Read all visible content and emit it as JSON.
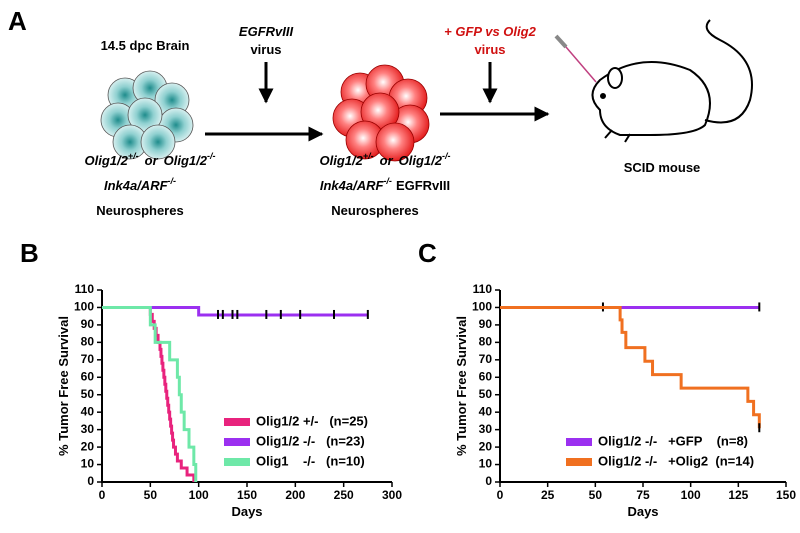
{
  "panel_a": {
    "label": "A",
    "source": "14.5 dpc Brain",
    "virus1": {
      "agent": "EGFRvIII",
      "word": "virus"
    },
    "virus2": {
      "agent": "+ GFP vs Olig2",
      "word": "virus"
    },
    "target": "SCID mouse",
    "left": {
      "g1": "Olig1/2",
      "s1": "+/-",
      "or": "or",
      "g2": "Olig1/2",
      "s2": "-/-",
      "g3": "Ink4a/ARF",
      "s3": "-/-",
      "cells": "Neurospheres"
    },
    "middle": {
      "g1": "Olig1/2",
      "s1": "+/-",
      "or": "or",
      "g2": "Olig1/2",
      "s2": "-/-",
      "g3": "Ink4a/ARF",
      "s3": "-/-",
      "extra": "EGFRvIII",
      "cells": "Neurospheres"
    }
  },
  "chart_data": [
    {
      "type": "survival",
      "panel": "B",
      "xlabel": "Days",
      "ylabel": "% Tumor Free Survival",
      "xlim": [
        0,
        300
      ],
      "xticks": [
        0,
        50,
        100,
        150,
        200,
        250,
        300
      ],
      "ylim": [
        0,
        110
      ],
      "yticks": [
        0,
        10,
        20,
        30,
        40,
        50,
        60,
        70,
        80,
        90,
        100,
        110
      ],
      "legend": "lower right",
      "series": [
        {
          "name": "Olig1/2 +/-   (n=25)",
          "color": "#e8237d",
          "x": [
            0,
            50,
            52,
            54,
            56,
            58,
            60,
            61,
            62,
            63,
            64,
            65,
            66,
            67,
            68,
            69,
            70,
            71,
            72,
            73,
            74,
            76,
            78,
            82,
            88,
            95
          ],
          "values": [
            100,
            96,
            92,
            88,
            84,
            80,
            76,
            72,
            68,
            64,
            60,
            56,
            52,
            48,
            44,
            40,
            36,
            32,
            28,
            24,
            20,
            16,
            12,
            8,
            4,
            0
          ],
          "censored": []
        },
        {
          "name": "Olig1/2 -/-   (n=23)",
          "color": "#9b30f0",
          "x": [
            0,
            100,
            275
          ],
          "values": [
            100,
            95.7,
            95.7
          ],
          "censored": [
            120,
            125,
            135,
            140,
            170,
            185,
            205,
            240,
            275
          ]
        },
        {
          "name": "Olig1    -/-   (n=10)",
          "color": "#6ee8a8",
          "x": [
            0,
            50,
            55,
            70,
            78,
            80,
            82,
            85,
            90,
            95,
            97
          ],
          "values": [
            100,
            90,
            80,
            70,
            60,
            50,
            40,
            30,
            20,
            10,
            0
          ],
          "censored": []
        }
      ]
    },
    {
      "type": "survival",
      "panel": "C",
      "xlabel": "Days",
      "ylabel": "% Tumor Free  Survival",
      "xlim": [
        0,
        150
      ],
      "xticks": [
        0,
        25,
        50,
        75,
        100,
        125,
        150
      ],
      "ylim": [
        0,
        110
      ],
      "yticks": [
        0,
        10,
        20,
        30,
        40,
        50,
        60,
        70,
        80,
        90,
        100,
        110
      ],
      "legend": "lower right",
      "series": [
        {
          "name": "Olig1/2 -/-   +GFP    (n=8)",
          "color": "#9b30f0",
          "x": [
            0,
            136
          ],
          "values": [
            100,
            100
          ],
          "censored": [
            54,
            136
          ]
        },
        {
          "name": "Olig1/2 -/-   +Olig2  (n=14)",
          "color": "#f07020",
          "x": [
            0,
            63,
            64,
            66,
            76,
            80,
            95,
            130,
            133,
            136
          ],
          "values": [
            100,
            92.9,
            85.7,
            77,
            69.2,
            61.5,
            53.8,
            46.2,
            38.5,
            30.8
          ],
          "censored": [
            136
          ]
        }
      ]
    }
  ]
}
